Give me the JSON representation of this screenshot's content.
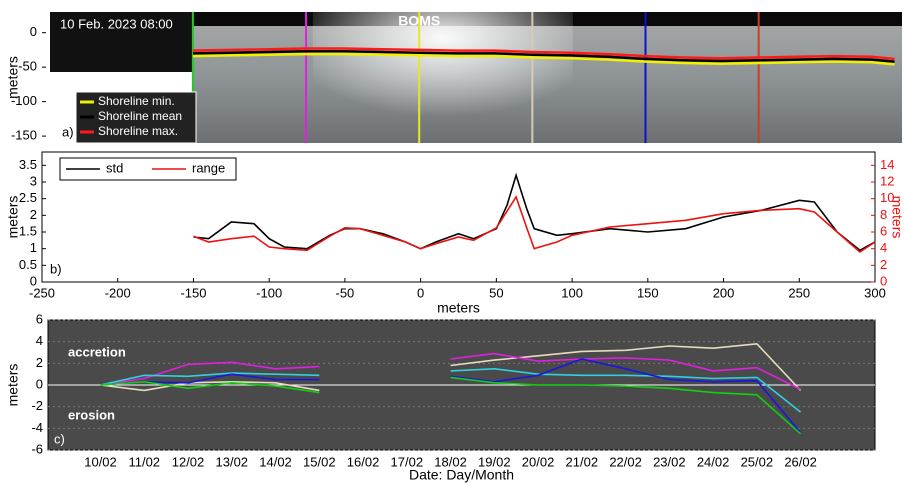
{
  "chart_data": [
    {
      "type": "line",
      "title": "10 Feb. 2023 08:00",
      "annotation": "BOMS",
      "panel_label": "a)",
      "ylabel": "meters",
      "xlim": [
        -250,
        320
      ],
      "ylim": [
        -160,
        30
      ],
      "yticks": [
        -150,
        -100,
        -50,
        0
      ],
      "legend": "lower left",
      "x": [
        -150,
        -125,
        -100,
        -75,
        -50,
        -25,
        0,
        25,
        50,
        75,
        100,
        125,
        150,
        175,
        200,
        225,
        250,
        275,
        300,
        315
      ],
      "series": [
        {
          "name": "Shoreline min.",
          "color": "#f0f000",
          "values": [
            -34,
            -33,
            -32,
            -31,
            -31,
            -32,
            -33,
            -34,
            -34,
            -36,
            -37,
            -39,
            -42,
            -44,
            -45,
            -44,
            -43,
            -42,
            -43,
            -46
          ]
        },
        {
          "name": "Shoreline mean",
          "color": "#000000",
          "values": [
            -30,
            -29,
            -28,
            -27,
            -27,
            -28,
            -29,
            -30,
            -30,
            -32,
            -33,
            -35,
            -38,
            -40,
            -41,
            -40,
            -39,
            -38,
            -39,
            -42
          ]
        },
        {
          "name": "Shoreline max.",
          "color": "#ff1a1a",
          "values": [
            -26,
            -25,
            -24,
            -23,
            -23,
            -24,
            -25,
            -26,
            -26,
            -28,
            -29,
            -31,
            -34,
            -36,
            -37,
            -36,
            -35,
            -34,
            -35,
            -38
          ]
        }
      ],
      "transects": [
        {
          "x": -150,
          "color": "#22cc22"
        },
        {
          "x": -75,
          "color": "#e020e0"
        },
        {
          "x": 0,
          "color": "#e8e820"
        },
        {
          "x": 75,
          "color": "#d8ccb0"
        },
        {
          "x": 150,
          "color": "#1010d0"
        },
        {
          "x": 225,
          "color": "#c84020"
        }
      ]
    },
    {
      "type": "line",
      "panel_label": "b)",
      "xlabel": "meters",
      "ylabel": "meters",
      "y2label": "meters",
      "legend": "upper left",
      "xlim": [
        -250,
        300
      ],
      "xticks": [
        -250,
        -200,
        -150,
        -100,
        -50,
        0,
        50,
        100,
        150,
        200,
        250,
        300
      ],
      "ylim": [
        0,
        3.9
      ],
      "yticks": [
        0,
        0.5,
        1,
        1.5,
        2,
        2.5,
        3,
        3.5
      ],
      "y2lim": [
        0,
        15.6
      ],
      "y2ticks": [
        0,
        2,
        4,
        6,
        8,
        10,
        12,
        14
      ],
      "x": [
        -150,
        -140,
        -125,
        -110,
        -100,
        -90,
        -75,
        -60,
        -50,
        -40,
        -25,
        -10,
        0,
        10,
        25,
        35,
        50,
        57,
        63,
        70,
        75,
        90,
        100,
        125,
        150,
        175,
        200,
        225,
        250,
        260,
        275,
        290,
        300
      ],
      "series": [
        {
          "name": "std",
          "color": "#000000",
          "values": [
            1.35,
            1.3,
            1.8,
            1.75,
            1.3,
            1.05,
            1.0,
            1.4,
            1.6,
            1.6,
            1.45,
            1.2,
            1.0,
            1.2,
            1.45,
            1.3,
            1.6,
            2.3,
            3.2,
            2.2,
            1.6,
            1.4,
            1.45,
            1.6,
            1.5,
            1.6,
            1.95,
            2.15,
            2.45,
            2.4,
            1.5,
            0.95,
            1.2
          ]
        },
        {
          "name": "range",
          "color": "#ee1111",
          "axis": "y2",
          "values": [
            5.5,
            4.8,
            5.2,
            5.5,
            4.2,
            4.0,
            3.8,
            5.5,
            6.5,
            6.4,
            5.6,
            4.8,
            4.0,
            4.6,
            5.4,
            5.0,
            6.5,
            8.5,
            10.2,
            6.5,
            4.0,
            4.8,
            5.6,
            6.6,
            7.0,
            7.4,
            8.2,
            8.6,
            8.8,
            8.4,
            6.0,
            3.6,
            4.8
          ]
        }
      ]
    },
    {
      "type": "line",
      "panel_label": "c)",
      "xlabel": "Date: Day/Month",
      "ylabel": "meters",
      "annotations": [
        "accretion",
        "erosion"
      ],
      "grid": true,
      "ylim": [
        -6,
        6
      ],
      "yticks": [
        -6,
        -4,
        -2,
        0,
        2,
        4,
        6
      ],
      "categories": [
        "10/02",
        "11/02",
        "12/02",
        "13/02",
        "14/02",
        "15/02",
        "16/02",
        "17/02",
        "18/02",
        "19/02",
        "20/02",
        "21/02",
        "22/02",
        "23/02",
        "24/02",
        "25/02",
        "26/02"
      ],
      "series": [
        {
          "color": "#e8dcc0",
          "values": [
            0,
            -0.5,
            0.2,
            0.3,
            0.2,
            -0.5,
            null,
            null,
            1.8,
            2.3,
            2.7,
            3.1,
            3.2,
            3.6,
            3.4,
            3.8,
            -0.5
          ]
        },
        {
          "color": "#e020e0",
          "values": [
            0,
            0.6,
            1.9,
            2.1,
            1.5,
            1.7,
            null,
            null,
            2.4,
            2.9,
            2.2,
            2.4,
            2.5,
            2.3,
            1.3,
            1.6,
            -0.4
          ]
        },
        {
          "color": "#30d0e0",
          "values": [
            0,
            0.9,
            0.8,
            1.1,
            1.0,
            0.9,
            null,
            null,
            1.3,
            1.5,
            1.0,
            0.9,
            0.9,
            0.8,
            0.6,
            0.7,
            -2.5
          ]
        },
        {
          "color": "#1818e0",
          "values": [
            0,
            0.3,
            0.2,
            1.0,
            0.5,
            0.5,
            null,
            null,
            0.8,
            0.3,
            0.9,
            2.4,
            1.5,
            0.5,
            0.3,
            0.4,
            -4.4
          ]
        },
        {
          "color": "#10d010",
          "values": [
            0,
            0.3,
            -0.3,
            0.2,
            -0.1,
            -0.7,
            null,
            null,
            0.7,
            0.2,
            0,
            0,
            -0.1,
            -0.3,
            -0.7,
            -0.9,
            -4.5
          ]
        }
      ]
    }
  ]
}
